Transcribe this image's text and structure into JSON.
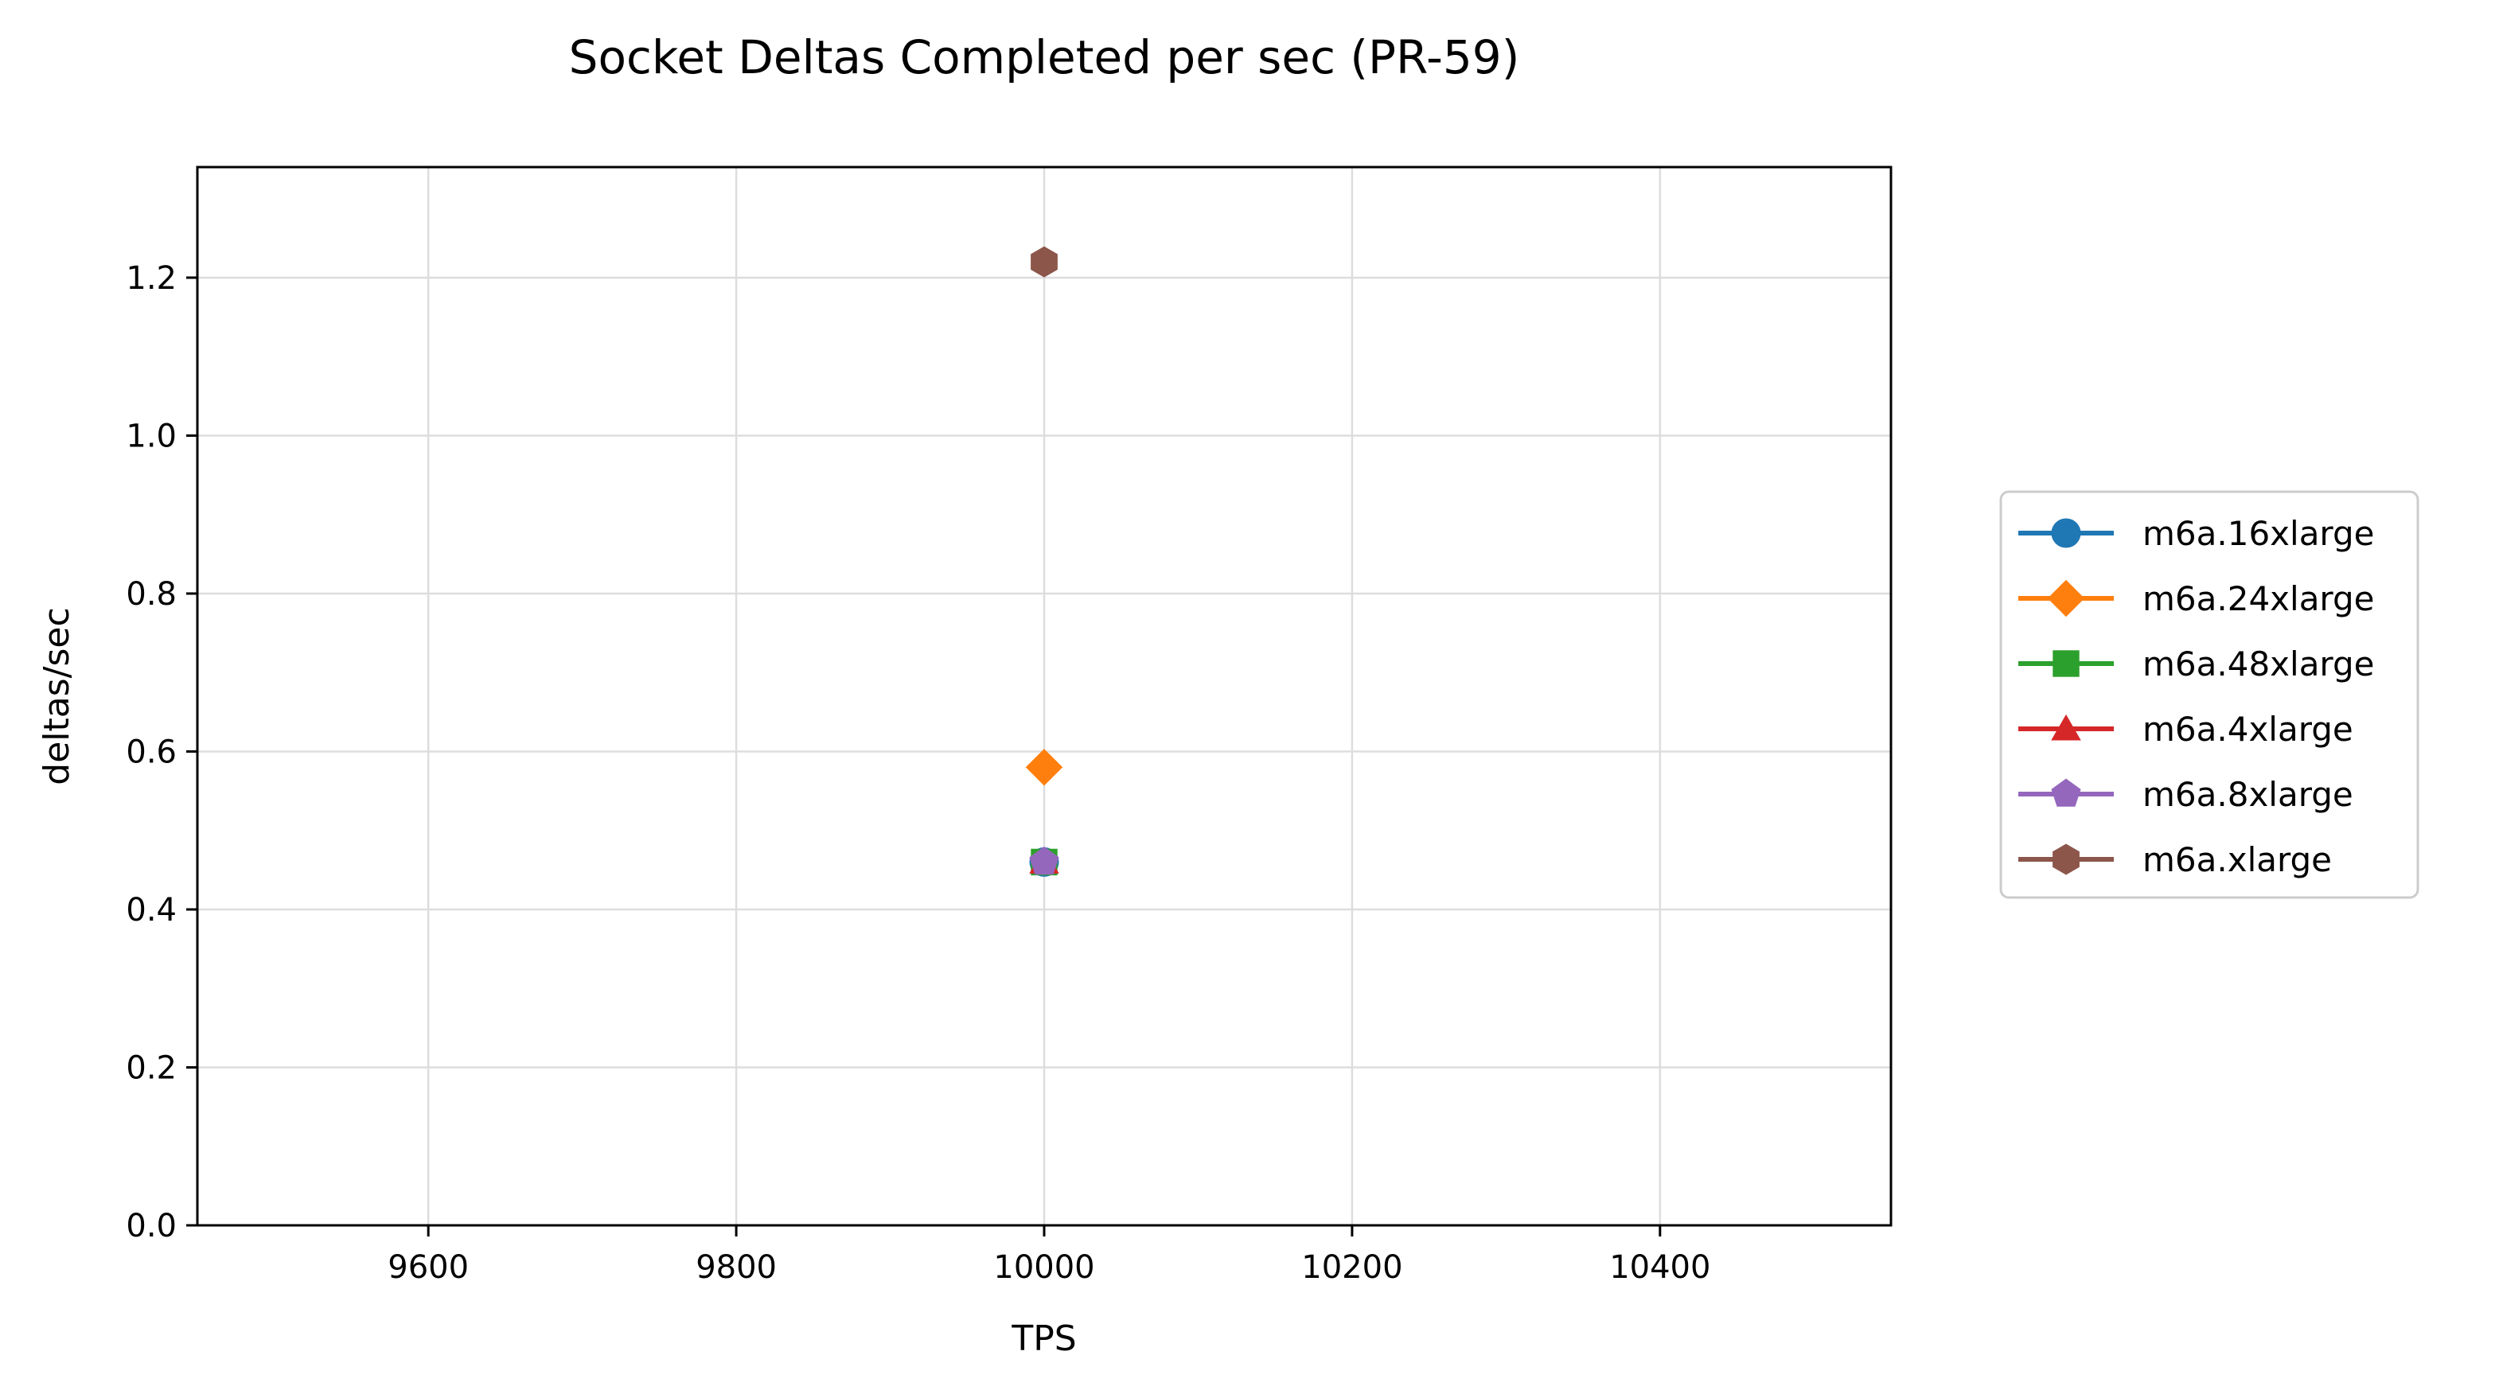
{
  "chart_data": {
    "type": "line",
    "title": "Socket Deltas Completed per sec (PR-59)",
    "xlabel": "TPS",
    "ylabel": "deltas/sec",
    "xlim": [
      9450,
      10550
    ],
    "ylim": [
      0,
      1.34
    ],
    "xticks": [
      9600,
      9800,
      10000,
      10200,
      10400
    ],
    "xtick_labels": [
      "9600",
      "9800",
      "10000",
      "10200",
      "10400"
    ],
    "yticks": [
      0.0,
      0.2,
      0.4,
      0.6,
      0.8,
      1.0,
      1.2
    ],
    "ytick_labels": [
      "0.0",
      "0.2",
      "0.4",
      "0.6",
      "0.8",
      "1.0",
      "1.2"
    ],
    "grid": true,
    "legend_position": "right, outside the plot",
    "series": [
      {
        "name": "m6a.16xlarge",
        "x": [
          10000
        ],
        "y": [
          0.46
        ],
        "color": "#1f77b4",
        "marker": "circle"
      },
      {
        "name": "m6a.24xlarge",
        "x": [
          10000
        ],
        "y": [
          0.58
        ],
        "color": "#ff7f0e",
        "marker": "diamond"
      },
      {
        "name": "m6a.48xlarge",
        "x": [
          10000
        ],
        "y": [
          0.46
        ],
        "color": "#2ca02c",
        "marker": "square"
      },
      {
        "name": "m6a.4xlarge",
        "x": [
          10000
        ],
        "y": [
          0.46
        ],
        "color": "#d62728",
        "marker": "triangle"
      },
      {
        "name": "m6a.8xlarge",
        "x": [
          10000
        ],
        "y": [
          0.46
        ],
        "color": "#9467bd",
        "marker": "pentagon"
      },
      {
        "name": "m6a.xlarge",
        "x": [
          10000
        ],
        "y": [
          1.22
        ],
        "color": "#8c564b",
        "marker": "hexagon"
      }
    ]
  }
}
